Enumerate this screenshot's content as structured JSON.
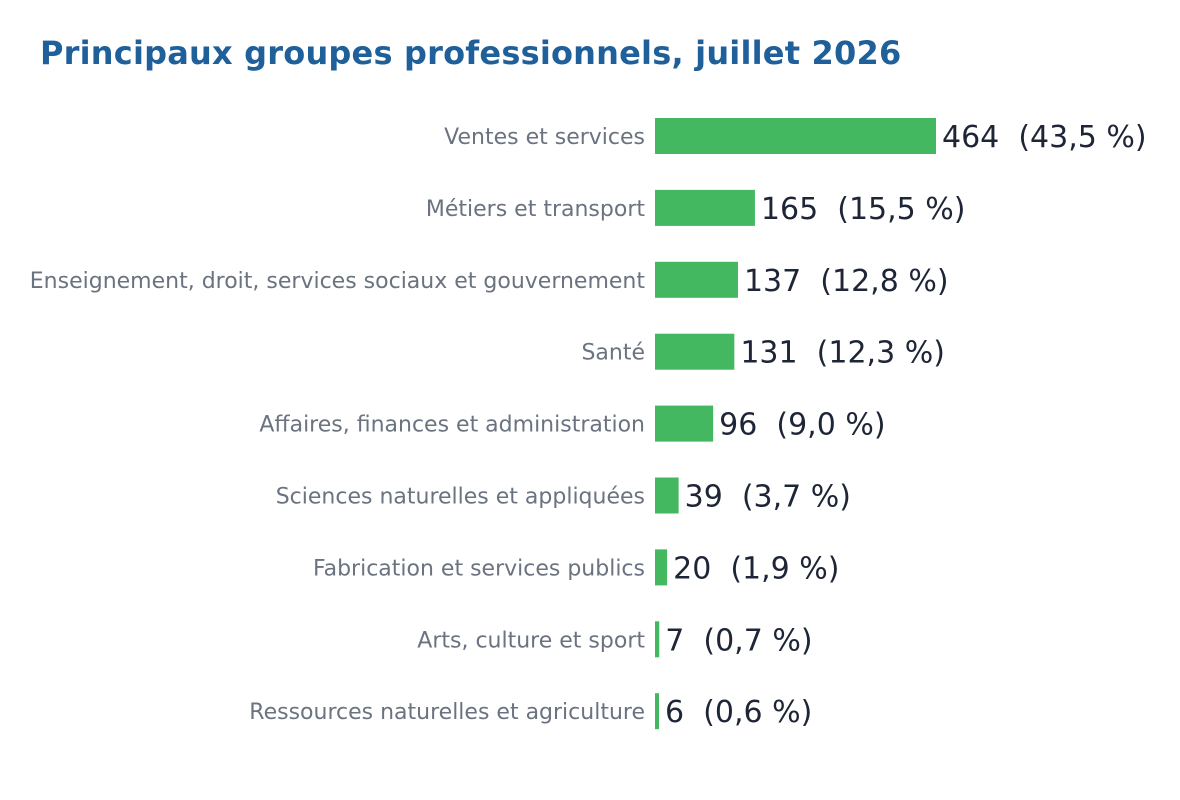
{
  "chart_data": {
    "type": "bar",
    "orientation": "horizontal",
    "title": "Principaux groupes professionnels, juillet 2026",
    "categories": [
      "Ventes et services",
      "Métiers et transport",
      "Enseignement, droit, services sociaux et gouvernement",
      "Santé",
      "Affaires, finances et administration",
      "Sciences naturelles et appliquées",
      "Fabrication et services publics",
      "Arts, culture et sport",
      "Ressources naturelles et agriculture"
    ],
    "values": [
      464,
      165,
      137,
      131,
      96,
      39,
      20,
      7,
      6
    ],
    "data_labels": [
      "464  (43,5 %)",
      "165  (15,5 %)",
      "137  (12,8 %)",
      "131  (12,3 %)",
      "96  (9,0 %)",
      "39  (3,7 %)",
      "20  (1,9 %)",
      "7  (0,7 %)",
      "6  (0,6 %)"
    ],
    "xlabel": "",
    "ylabel": "",
    "grid": false,
    "legend": "none",
    "colors": {
      "bar": "#43b860",
      "title": "#1f5f9a",
      "category_text": "#6b7380",
      "value_text": "#1e2536"
    }
  }
}
